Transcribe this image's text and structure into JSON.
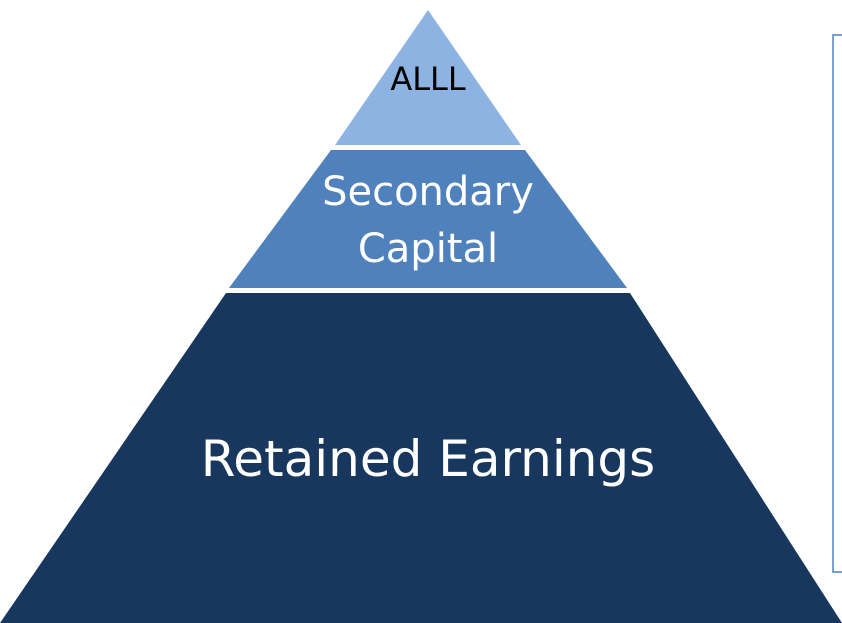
{
  "pyramid": {
    "layers": [
      {
        "lines": [
          "ALLL"
        ]
      },
      {
        "lines": [
          "Secondary",
          "Capital"
        ]
      },
      {
        "lines": [
          "Retained Earnings"
        ]
      }
    ]
  }
}
